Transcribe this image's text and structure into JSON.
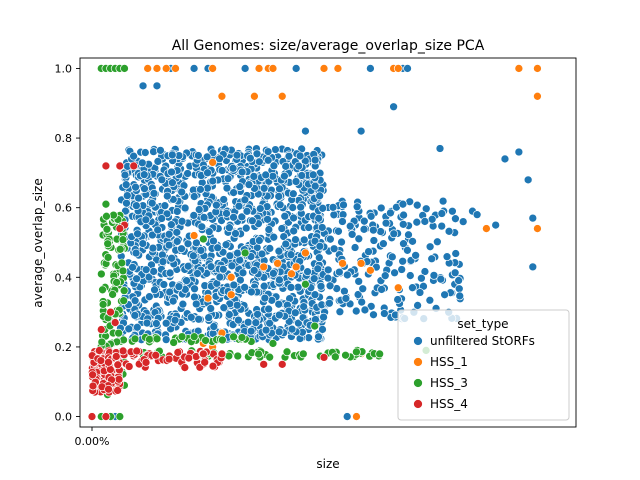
{
  "chart_data": {
    "type": "scatter",
    "title": "All Genomes: size/average_overlap_size PCA",
    "xlabel": "size",
    "ylabel": "average_overlap_size",
    "x_tick_labels": [
      "0.00%"
    ],
    "ylim": [
      -0.03,
      1.03
    ],
    "y_ticks": [
      0.0,
      0.2,
      0.4,
      0.6,
      0.8,
      1.0
    ],
    "y_tick_labels": [
      "0.0",
      "0.2",
      "0.4",
      "0.6",
      "0.8",
      "1.0"
    ],
    "grid": false,
    "legend": {
      "title": "set_type",
      "placement": "lower-right",
      "entries": [
        "unfiltered StORFs",
        "HSS_1",
        "HSS_3",
        "HSS_4"
      ]
    },
    "series": [
      {
        "name": "unfiltered StORFs",
        "color": "#1f77b4",
        "clusters": [
          {
            "x_range": [
              0.06,
              0.5
            ],
            "y_range": [
              0.22,
              0.77
            ],
            "count": 1400
          },
          {
            "x_range": [
              0.48,
              0.8
            ],
            "y_range": [
              0.28,
              0.62
            ],
            "count": 220
          }
        ],
        "points": [
          {
            "x": 0.17,
            "y": 1.0
          },
          {
            "x": 0.22,
            "y": 1.0
          },
          {
            "x": 0.25,
            "y": 1.0
          },
          {
            "x": 0.33,
            "y": 1.0
          },
          {
            "x": 0.44,
            "y": 1.0
          },
          {
            "x": 0.6,
            "y": 1.0
          },
          {
            "x": 0.67,
            "y": 1.0
          },
          {
            "x": 0.68,
            "y": 1.0
          },
          {
            "x": 0.05,
            "y": 0.0
          },
          {
            "x": 0.58,
            "y": 0.82
          },
          {
            "x": 0.46,
            "y": 0.82
          },
          {
            "x": 0.65,
            "y": 0.89
          },
          {
            "x": 0.75,
            "y": 0.77
          },
          {
            "x": 0.89,
            "y": 0.74
          },
          {
            "x": 0.92,
            "y": 0.76
          },
          {
            "x": 0.82,
            "y": 0.59
          },
          {
            "x": 0.83,
            "y": 0.58
          },
          {
            "x": 0.95,
            "y": 0.57
          },
          {
            "x": 0.95,
            "y": 0.43
          },
          {
            "x": 0.94,
            "y": 0.68
          },
          {
            "x": 0.8,
            "y": 0.56
          },
          {
            "x": 0.87,
            "y": 0.55
          },
          {
            "x": 0.76,
            "y": 0.35
          },
          {
            "x": 0.05,
            "y": 0.56
          },
          {
            "x": 0.55,
            "y": 0.0
          },
          {
            "x": 0.14,
            "y": 0.95
          },
          {
            "x": 0.11,
            "y": 0.95
          }
        ]
      },
      {
        "name": "HSS_1",
        "color": "#ff7f0e",
        "points": [
          {
            "x": 0.12,
            "y": 1.0
          },
          {
            "x": 0.14,
            "y": 1.0
          },
          {
            "x": 0.16,
            "y": 1.0
          },
          {
            "x": 0.18,
            "y": 1.0
          },
          {
            "x": 0.26,
            "y": 1.0
          },
          {
            "x": 0.36,
            "y": 1.0
          },
          {
            "x": 0.38,
            "y": 1.0
          },
          {
            "x": 0.39,
            "y": 1.0
          },
          {
            "x": 0.5,
            "y": 1.0
          },
          {
            "x": 0.53,
            "y": 1.0
          },
          {
            "x": 0.65,
            "y": 1.0
          },
          {
            "x": 0.66,
            "y": 1.0
          },
          {
            "x": 0.92,
            "y": 1.0
          },
          {
            "x": 0.96,
            "y": 1.0
          },
          {
            "x": 0.96,
            "y": 0.92
          },
          {
            "x": 0.28,
            "y": 0.92
          },
          {
            "x": 0.35,
            "y": 0.92
          },
          {
            "x": 0.41,
            "y": 0.92
          },
          {
            "x": 0.96,
            "y": 0.54
          },
          {
            "x": 0.85,
            "y": 0.54
          },
          {
            "x": 0.26,
            "y": 0.73
          },
          {
            "x": 0.22,
            "y": 0.52
          },
          {
            "x": 0.4,
            "y": 0.44
          },
          {
            "x": 0.44,
            "y": 0.43
          },
          {
            "x": 0.58,
            "y": 0.44
          },
          {
            "x": 0.54,
            "y": 0.44
          },
          {
            "x": 0.6,
            "y": 0.42
          },
          {
            "x": 0.66,
            "y": 0.37
          },
          {
            "x": 0.3,
            "y": 0.35
          },
          {
            "x": 0.25,
            "y": 0.34
          },
          {
            "x": 0.3,
            "y": 0.4
          },
          {
            "x": 0.37,
            "y": 0.43
          },
          {
            "x": 0.46,
            "y": 0.47
          },
          {
            "x": 0.43,
            "y": 0.41
          },
          {
            "x": 0.58,
            "y": 0.18
          },
          {
            "x": 0.57,
            "y": 0.0
          },
          {
            "x": 0.28,
            "y": 0.24
          },
          {
            "x": 0.26,
            "y": 0.2
          },
          {
            "x": 0.24,
            "y": 0.21
          }
        ]
      },
      {
        "name": "HSS_3",
        "color": "#2ca02c",
        "clusters": [
          {
            "x_range": [
              0.02,
              0.07
            ],
            "y_range": [
              0.06,
              0.58
            ],
            "count": 130
          },
          {
            "x_range": [
              0.08,
              0.62
            ],
            "y_range": [
              0.17,
              0.19
            ],
            "count": 55
          },
          {
            "x_range": [
              0.08,
              0.35
            ],
            "y_range": [
              0.21,
              0.23
            ],
            "count": 30
          }
        ],
        "points": [
          {
            "x": 0.02,
            "y": 1.0
          },
          {
            "x": 0.03,
            "y": 1.0
          },
          {
            "x": 0.04,
            "y": 1.0
          },
          {
            "x": 0.05,
            "y": 1.0
          },
          {
            "x": 0.06,
            "y": 1.0
          },
          {
            "x": 0.07,
            "y": 1.0
          },
          {
            "x": 0.02,
            "y": 0.0
          },
          {
            "x": 0.04,
            "y": 0.0
          },
          {
            "x": 0.06,
            "y": 0.0
          },
          {
            "x": 0.03,
            "y": 0.61
          },
          {
            "x": 0.48,
            "y": 0.26
          },
          {
            "x": 0.39,
            "y": 0.21
          },
          {
            "x": 0.46,
            "y": 0.38
          },
          {
            "x": 0.33,
            "y": 0.47
          },
          {
            "x": 0.24,
            "y": 0.51
          },
          {
            "x": 0.72,
            "y": 0.19
          },
          {
            "x": 0.62,
            "y": 0.18
          }
        ]
      },
      {
        "name": "HSS_4",
        "color": "#d62728",
        "clusters": [
          {
            "x_range": [
              0.0,
              0.06
            ],
            "y_range": [
              0.07,
              0.19
            ],
            "count": 150
          },
          {
            "x_range": [
              0.05,
              0.28
            ],
            "y_range": [
              0.14,
              0.19
            ],
            "count": 60
          }
        ],
        "points": [
          {
            "x": 0.03,
            "y": 0.72
          },
          {
            "x": 0.06,
            "y": 0.72
          },
          {
            "x": 0.09,
            "y": 0.72
          },
          {
            "x": 0.07,
            "y": 0.55
          },
          {
            "x": 0.06,
            "y": 0.54
          },
          {
            "x": 0.04,
            "y": 0.3
          },
          {
            "x": 0.05,
            "y": 0.27
          },
          {
            "x": 0.02,
            "y": 0.25
          },
          {
            "x": 0.0,
            "y": 0.0
          },
          {
            "x": 0.03,
            "y": 0.0
          },
          {
            "x": 0.24,
            "y": 0.18
          },
          {
            "x": 0.28,
            "y": 0.18
          },
          {
            "x": 0.41,
            "y": 0.15
          },
          {
            "x": 0.37,
            "y": 0.15
          },
          {
            "x": 0.5,
            "y": 0.17
          }
        ]
      }
    ]
  }
}
